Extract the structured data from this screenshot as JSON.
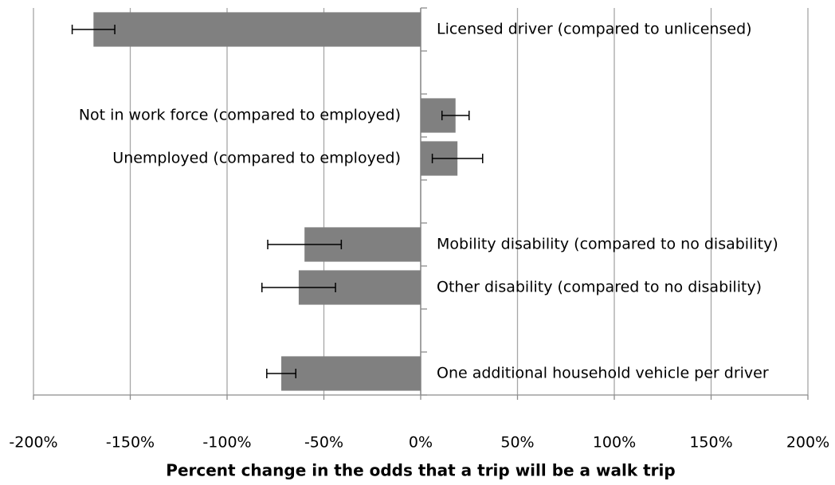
{
  "chart_data": {
    "type": "bar",
    "orientation": "horizontal",
    "xlabel": "Percent change in the odds that a trip will be a walk trip",
    "categories": [
      "Licensed driver (compared to unlicensed)",
      null,
      "Not in work force (compared to employed)",
      "Unemployed (compared to employed)",
      null,
      "Mobility disability (compared to no disability)",
      "Other disability (compared to no disability)",
      null,
      "One additional household vehicle per driver"
    ],
    "values": [
      -169,
      null,
      18,
      19,
      null,
      -60,
      -63,
      null,
      -72
    ],
    "errors": [
      11,
      null,
      7,
      13,
      null,
      19,
      19,
      null,
      7.5
    ],
    "color": "#808080",
    "xlim": [
      -200,
      200
    ],
    "xticks": [
      {
        "value": -200,
        "label": "-200%"
      },
      {
        "value": -150,
        "label": "-150%"
      },
      {
        "value": -100,
        "label": "-100%"
      },
      {
        "value": -50,
        "label": "-50%"
      },
      {
        "value": 0,
        "label": "0%"
      },
      {
        "value": 50,
        "label": "50%"
      },
      {
        "value": 100,
        "label": "100%"
      },
      {
        "value": 150,
        "label": "150%"
      },
      {
        "value": 200,
        "label": "200%"
      }
    ],
    "grid": true
  }
}
